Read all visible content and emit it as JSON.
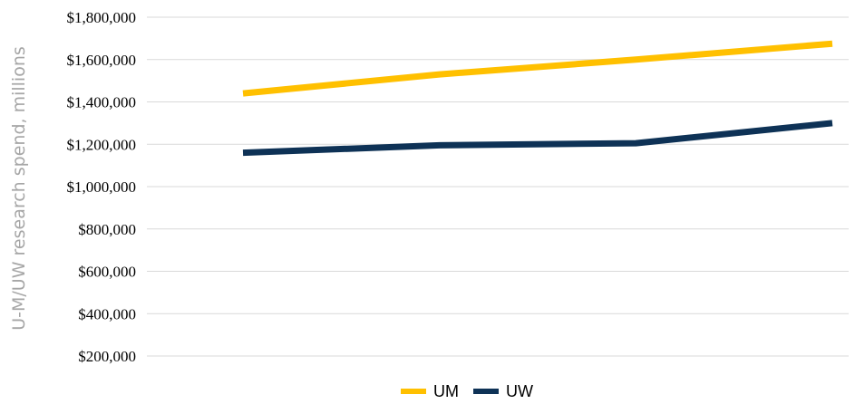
{
  "chart_data": {
    "type": "line",
    "title": "",
    "xlabel": "",
    "ylabel": "U-M/UW research spend, millions",
    "ylim": [
      200000,
      1800000
    ],
    "yticks": [
      200000,
      400000,
      600000,
      800000,
      1000000,
      1200000,
      1400000,
      1600000,
      1800000
    ],
    "ytick_labels": [
      "$200,000",
      "$400,000",
      "$600,000",
      "$800,000",
      "$1,000,000",
      "$1,200,000",
      "$1,400,000",
      "$1,600,000",
      "$1,800,000"
    ],
    "grid": true,
    "legend_position": "bottom",
    "x": [
      1,
      2,
      3,
      4
    ],
    "series": [
      {
        "name": "UM",
        "color": "#FFC000",
        "values": [
          1440000,
          1530000,
          1600000,
          1675000
        ]
      },
      {
        "name": "UW",
        "color": "#0E3256",
        "values": [
          1160000,
          1195000,
          1205000,
          1300000
        ]
      }
    ]
  }
}
